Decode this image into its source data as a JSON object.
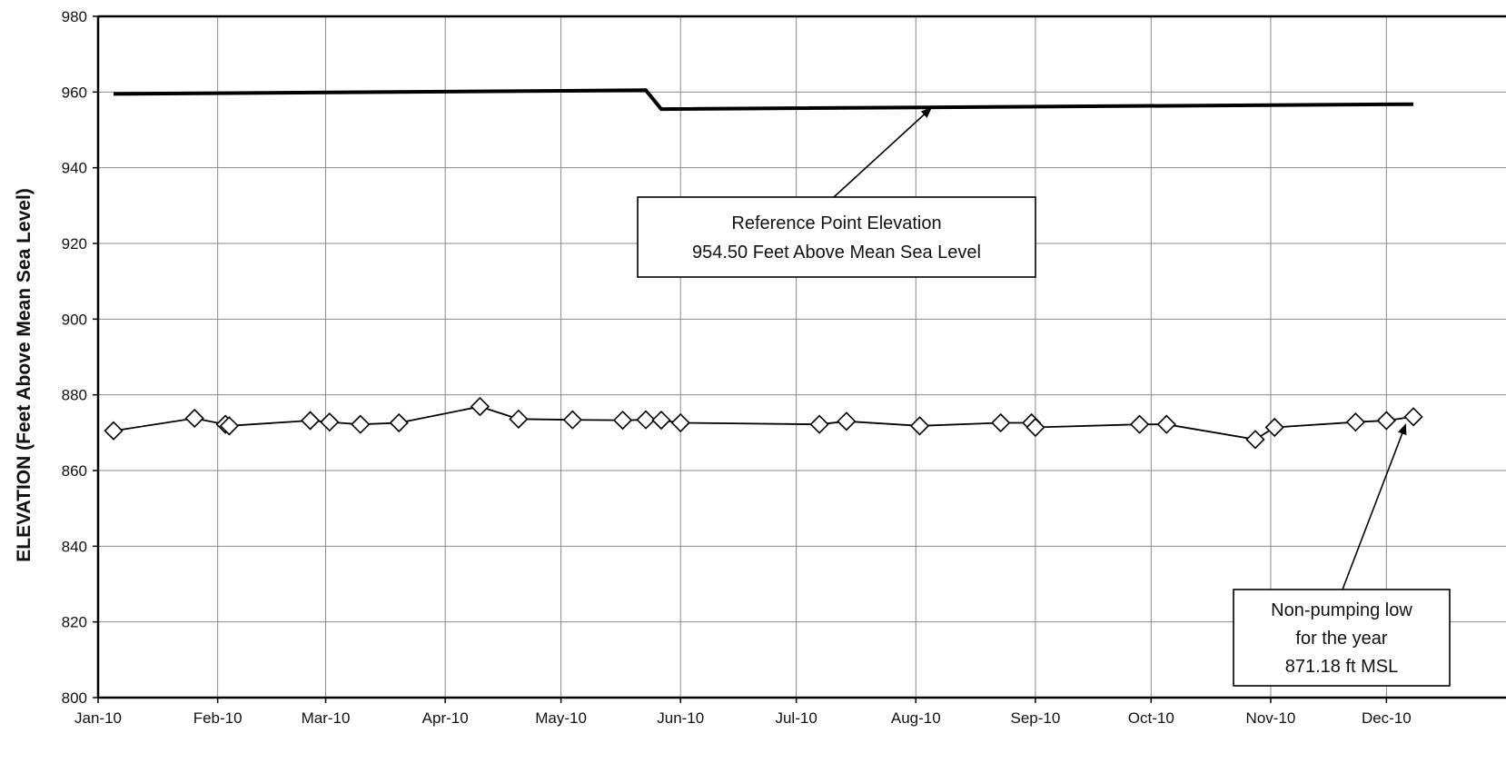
{
  "chart_data": {
    "type": "line",
    "xlabel": "",
    "ylabel": "ELEVATION (Feet Above Mean Sea Level)",
    "ylim": [
      800,
      980
    ],
    "y_ticks": [
      800,
      820,
      840,
      860,
      880,
      900,
      920,
      940,
      960,
      980
    ],
    "x_ticks": [
      "Jan-10",
      "Feb-10",
      "Mar-10",
      "Apr-10",
      "May-10",
      "Jun-10",
      "Jul-10",
      "Aug-10",
      "Sep-10",
      "Oct-10",
      "Nov-10",
      "Dec-10"
    ],
    "x_tick_dates": [
      "2010-01-01",
      "2010-02-01",
      "2010-03-01",
      "2010-04-01",
      "2010-05-01",
      "2010-06-01",
      "2010-07-01",
      "2010-08-01",
      "2010-09-01",
      "2010-10-01",
      "2010-11-01",
      "2010-12-01"
    ],
    "xlim": [
      "2010-01-01",
      "2011-01-01"
    ],
    "grid": true,
    "series": [
      {
        "marker": "none",
        "color": "#000000",
        "points": [
          {
            "x": "2010-01-05",
            "y": 959.5
          },
          {
            "x": "2010-05-23",
            "y": 960.5
          },
          {
            "x": "2010-05-27",
            "y": 955.5
          },
          {
            "x": "2010-12-08",
            "y": 956.8
          }
        ]
      },
      {
        "marker": "diamond",
        "color": "#000000",
        "points": [
          {
            "x": "2010-01-05",
            "y": 870.5
          },
          {
            "x": "2010-01-26",
            "y": 873.8
          },
          {
            "x": "2010-02-03",
            "y": 872.2
          },
          {
            "x": "2010-02-04",
            "y": 871.8
          },
          {
            "x": "2010-02-25",
            "y": 873.2
          },
          {
            "x": "2010-03-02",
            "y": 872.8
          },
          {
            "x": "2010-03-10",
            "y": 872.2
          },
          {
            "x": "2010-03-20",
            "y": 872.6
          },
          {
            "x": "2010-04-10",
            "y": 876.9
          },
          {
            "x": "2010-04-20",
            "y": 873.6
          },
          {
            "x": "2010-05-04",
            "y": 873.4
          },
          {
            "x": "2010-05-17",
            "y": 873.3
          },
          {
            "x": "2010-05-23",
            "y": 873.4
          },
          {
            "x": "2010-05-27",
            "y": 873.3
          },
          {
            "x": "2010-06-01",
            "y": 872.6
          },
          {
            "x": "2010-07-07",
            "y": 872.2
          },
          {
            "x": "2010-07-14",
            "y": 873.0
          },
          {
            "x": "2010-08-02",
            "y": 871.8
          },
          {
            "x": "2010-08-23",
            "y": 872.6
          },
          {
            "x": "2010-08-31",
            "y": 872.6
          },
          {
            "x": "2010-09-01",
            "y": 871.4
          },
          {
            "x": "2010-09-28",
            "y": 872.2
          },
          {
            "x": "2010-10-05",
            "y": 872.2
          },
          {
            "x": "2010-10-28",
            "y": 868.2
          },
          {
            "x": "2010-11-02",
            "y": 871.4
          },
          {
            "x": "2010-11-23",
            "y": 872.8
          },
          {
            "x": "2010-12-01",
            "y": 873.2
          },
          {
            "x": "2010-12-08",
            "y": 874.2
          }
        ]
      }
    ],
    "annotations": [
      {
        "lines": [
          "Reference Point Elevation",
          "954.50 Feet Above Mean Sea Level"
        ],
        "arrow_to": {
          "x": "2010-08-05",
          "y": 955.8
        }
      },
      {
        "lines": [
          "Non-pumping low",
          "for the year",
          "871.18 ft MSL"
        ],
        "arrow_to": {
          "x": "2010-12-06",
          "y": 872.2
        }
      }
    ]
  }
}
